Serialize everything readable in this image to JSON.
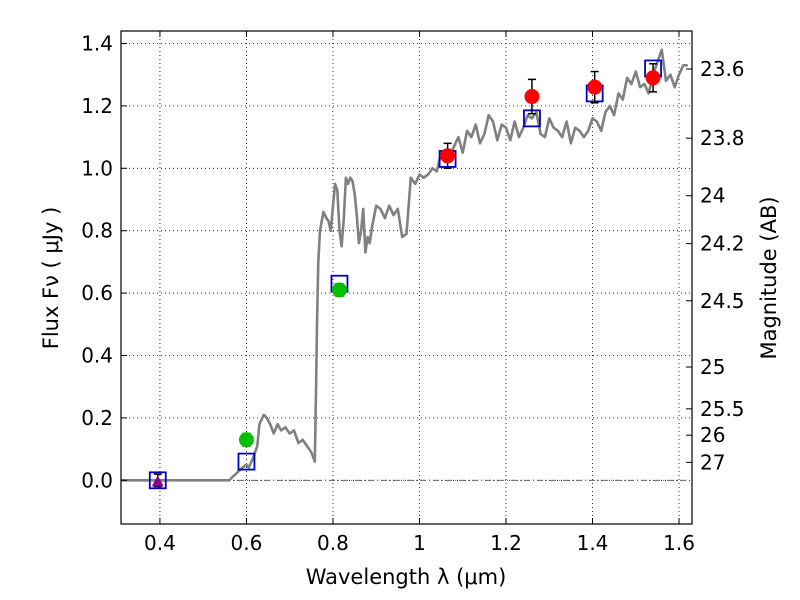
{
  "chart_data": {
    "type": "scatter",
    "xlabel": "Wavelength  λ (μm)",
    "ylabel": "Flux  Fν  ( μJy )",
    "y2label": "Magnitude (AB)",
    "xlim": [
      0.31,
      1.63
    ],
    "ylim": [
      -0.14,
      1.44
    ],
    "grid": true,
    "x_ticks": [
      {
        "value": 0.4,
        "label": "0.4"
      },
      {
        "value": 0.6,
        "label": "0.6"
      },
      {
        "value": 0.8,
        "label": "0.8"
      },
      {
        "value": 1.0,
        "label": "1"
      },
      {
        "value": 1.2,
        "label": "1.2"
      },
      {
        "value": 1.4,
        "label": "1.4"
      },
      {
        "value": 1.6,
        "label": "1.6"
      }
    ],
    "y_ticks": [
      {
        "value": 0.0,
        "label": "0.0"
      },
      {
        "value": 0.2,
        "label": "0.2"
      },
      {
        "value": 0.4,
        "label": "0.4"
      },
      {
        "value": 0.6,
        "label": "0.6"
      },
      {
        "value": 0.8,
        "label": "0.8"
      },
      {
        "value": 1.0,
        "label": "1.0"
      },
      {
        "value": 1.2,
        "label": "1.2"
      },
      {
        "value": 1.4,
        "label": "1.4"
      }
    ],
    "mag_ticks": [
      {
        "mag": 23.6,
        "label": "23.6"
      },
      {
        "mag": 23.8,
        "label": "23.8"
      },
      {
        "mag": 24.0,
        "label": "24"
      },
      {
        "mag": 24.2,
        "label": "24.2"
      },
      {
        "mag": 24.5,
        "label": "24.5"
      },
      {
        "mag": 25.0,
        "label": "25"
      },
      {
        "mag": 25.5,
        "label": "25.5"
      },
      {
        "mag": 26.0,
        "label": "26"
      },
      {
        "mag": 27.0,
        "label": "27"
      }
    ],
    "series": [
      {
        "kind": "model_sed",
        "color": "#808080",
        "x": [
          0.31,
          0.56,
          0.575,
          0.59,
          0.6,
          0.605,
          0.615,
          0.625,
          0.63,
          0.64,
          0.647,
          0.655,
          0.663,
          0.672,
          0.68,
          0.69,
          0.7,
          0.71,
          0.72,
          0.73,
          0.74,
          0.75,
          0.758,
          0.761,
          0.763,
          0.766,
          0.77,
          0.778,
          0.785,
          0.79,
          0.795,
          0.8,
          0.805,
          0.81,
          0.815,
          0.82,
          0.825,
          0.83,
          0.835,
          0.84,
          0.845,
          0.85,
          0.855,
          0.86,
          0.865,
          0.87,
          0.875,
          0.88,
          0.885,
          0.89,
          0.9,
          0.91,
          0.92,
          0.93,
          0.94,
          0.95,
          0.96,
          0.97,
          0.98,
          0.99,
          1.0,
          1.01,
          1.02,
          1.03,
          1.04,
          1.05,
          1.06,
          1.07,
          1.08,
          1.09,
          1.1,
          1.11,
          1.12,
          1.13,
          1.14,
          1.15,
          1.16,
          1.17,
          1.18,
          1.19,
          1.2,
          1.21,
          1.22,
          1.23,
          1.24,
          1.25,
          1.26,
          1.27,
          1.28,
          1.29,
          1.3,
          1.31,
          1.32,
          1.33,
          1.34,
          1.35,
          1.36,
          1.37,
          1.38,
          1.39,
          1.4,
          1.41,
          1.42,
          1.43,
          1.44,
          1.45,
          1.46,
          1.47,
          1.48,
          1.49,
          1.5,
          1.51,
          1.52,
          1.53,
          1.54,
          1.55,
          1.56,
          1.57,
          1.58,
          1.59,
          1.6,
          1.61,
          1.62
        ],
        "y": [
          0.0,
          0.0,
          0.02,
          0.04,
          0.05,
          0.04,
          0.07,
          0.11,
          0.18,
          0.21,
          0.2,
          0.18,
          0.15,
          0.18,
          0.16,
          0.17,
          0.15,
          0.16,
          0.12,
          0.13,
          0.11,
          0.09,
          0.06,
          0.3,
          0.5,
          0.7,
          0.8,
          0.86,
          0.84,
          0.83,
          0.8,
          0.88,
          0.95,
          0.93,
          0.8,
          0.75,
          0.84,
          0.97,
          0.95,
          0.97,
          0.96,
          0.92,
          0.85,
          0.76,
          0.8,
          0.87,
          0.73,
          0.78,
          0.76,
          0.81,
          0.88,
          0.87,
          0.84,
          0.88,
          0.85,
          0.87,
          0.78,
          0.79,
          0.97,
          0.95,
          0.98,
          0.97,
          0.98,
          1.0,
          0.99,
          1.05,
          1.02,
          1.04,
          1.07,
          1.1,
          1.05,
          1.12,
          1.1,
          1.14,
          1.08,
          1.11,
          1.17,
          1.15,
          1.09,
          1.14,
          1.13,
          1.09,
          1.15,
          1.1,
          1.13,
          1.17,
          1.16,
          1.18,
          1.11,
          1.1,
          1.16,
          1.13,
          1.12,
          1.1,
          1.15,
          1.08,
          1.13,
          1.12,
          1.1,
          1.12,
          1.16,
          1.15,
          1.12,
          1.18,
          1.2,
          1.17,
          1.24,
          1.22,
          1.29,
          1.27,
          1.31,
          1.26,
          1.27,
          1.24,
          1.3,
          1.34,
          1.38,
          1.28,
          1.3,
          1.26,
          1.3,
          1.33,
          1.33
        ]
      },
      {
        "kind": "model_photometry",
        "marker": "open-square",
        "color": "#0000cc",
        "x": [
          0.395,
          0.6,
          0.815,
          1.065,
          1.26,
          1.405,
          1.54
        ],
        "y": [
          0.0,
          0.06,
          0.63,
          1.03,
          1.16,
          1.24,
          1.32
        ]
      },
      {
        "kind": "upper_limit",
        "marker": "triangle",
        "color": "#8b008b",
        "x": [
          0.395
        ],
        "y": [
          0.0
        ],
        "err": [
          0.02
        ]
      },
      {
        "kind": "observed_optical",
        "marker": "circle",
        "color": "#00c000",
        "x": [
          0.6,
          0.815
        ],
        "y": [
          0.13,
          0.61
        ],
        "err": [
          0.02,
          0.02
        ]
      },
      {
        "kind": "observed_nir",
        "marker": "circle",
        "color": "#ff0000",
        "x": [
          1.065,
          1.26,
          1.405,
          1.54
        ],
        "y": [
          1.04,
          1.23,
          1.26,
          1.29
        ],
        "err": [
          0.04,
          0.055,
          0.05,
          0.045
        ]
      }
    ]
  }
}
